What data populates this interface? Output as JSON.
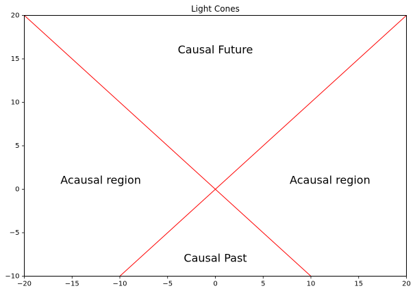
{
  "chart_data": {
    "type": "line",
    "title": "Light Cones",
    "xlabel": "",
    "ylabel": "",
    "xlim": [
      -20,
      20
    ],
    "ylim": [
      -10,
      20
    ],
    "xticks": [
      -20,
      -15,
      -10,
      -5,
      0,
      5,
      10,
      15,
      20
    ],
    "yticks": [
      -10,
      -5,
      0,
      5,
      10,
      15,
      20
    ],
    "xtick_labels": [
      "−20",
      "−15",
      "−10",
      "−5",
      "0",
      "5",
      "10",
      "15",
      "20"
    ],
    "ytick_labels": [
      "−10",
      "−5",
      "0",
      "5",
      "10",
      "15",
      "20"
    ],
    "grid": false,
    "series": [
      {
        "color": "#ff0000",
        "x": [
          -10,
          20
        ],
        "y": [
          -10,
          20
        ]
      },
      {
        "color": "#ff0000",
        "x": [
          -20,
          10
        ],
        "y": [
          20,
          -10
        ]
      }
    ],
    "annotations": [
      {
        "text": "Causal Future",
        "x": 0,
        "y": 16
      },
      {
        "text": "Causal Past",
        "x": 0,
        "y": -8
      },
      {
        "text": "Acausal region",
        "x": -12,
        "y": 1
      },
      {
        "text": "Acausal region",
        "x": 12,
        "y": 1
      }
    ]
  }
}
